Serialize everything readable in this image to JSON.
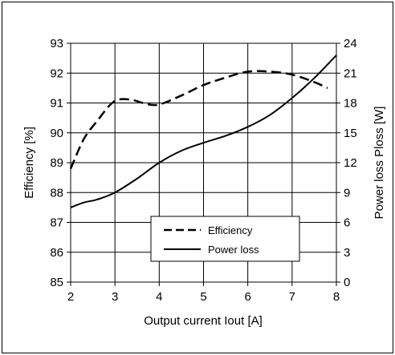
{
  "chart_data": {
    "type": "line",
    "title": "",
    "xlabel": "Output current Iout [A]",
    "ylabel": "Efficiency [%]",
    "y2label": "Power loss Ploss [W]",
    "xlim": [
      2,
      8
    ],
    "ylim": [
      85,
      93
    ],
    "y2lim": [
      0,
      24
    ],
    "xticks": [
      "2",
      "3",
      "4",
      "5",
      "6",
      "7",
      "8"
    ],
    "yticks": [
      "85",
      "86",
      "87",
      "88",
      "89",
      "90",
      "91",
      "92",
      "93"
    ],
    "y2ticks": [
      "0",
      "3",
      "6",
      "9",
      "12",
      "15",
      "18",
      "21",
      "24"
    ],
    "grid": true,
    "legend_position": "lower-center",
    "series": [
      {
        "name": "Efficiency",
        "axis": "left",
        "style": "dashed",
        "color": "#000000",
        "x": [
          2.0,
          2.3,
          2.6,
          2.9,
          3.1,
          3.4,
          3.7,
          4.0,
          4.5,
          5.0,
          5.5,
          6.0,
          6.5,
          7.0,
          7.5,
          7.8
        ],
        "y": [
          88.8,
          89.8,
          90.4,
          90.95,
          91.12,
          91.1,
          90.97,
          90.95,
          91.25,
          91.6,
          91.85,
          92.05,
          92.05,
          91.95,
          91.7,
          91.5
        ]
      },
      {
        "name": "Power loss",
        "axis": "right",
        "style": "solid",
        "color": "#000000",
        "x": [
          2.0,
          2.3,
          2.6,
          3.0,
          3.5,
          4.0,
          4.5,
          5.0,
          5.5,
          6.0,
          6.5,
          7.0,
          7.5,
          8.0
        ],
        "y": [
          7.5,
          8.0,
          8.3,
          9.0,
          10.4,
          12.0,
          13.2,
          14.0,
          14.7,
          15.6,
          16.8,
          18.5,
          20.5,
          22.8
        ]
      }
    ]
  }
}
